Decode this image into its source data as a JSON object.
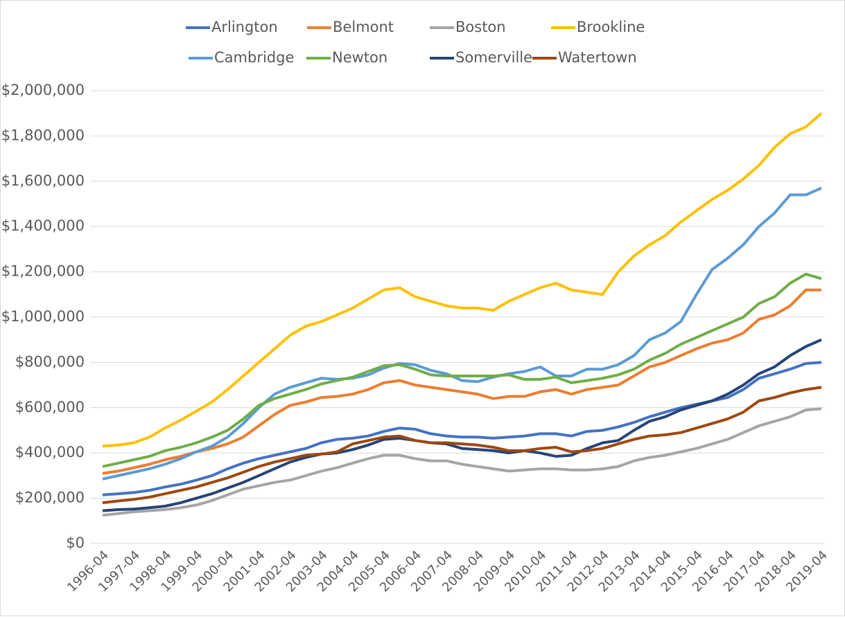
{
  "chart_data": {
    "type": "line",
    "categories": [
      "1996-04",
      null,
      "1997-04",
      null,
      "1998-04",
      null,
      "1999-04",
      null,
      "2000-04",
      null,
      "2001-04",
      null,
      "2002-04",
      null,
      "2003-04",
      null,
      "2004-04",
      null,
      "2005-04",
      null,
      "2006-04",
      null,
      "2007-04",
      null,
      "2008-04",
      null,
      "2009-04",
      null,
      "2010-04",
      null,
      "2011-04",
      null,
      "2012-04",
      null,
      "2013-04",
      null,
      "2014-04",
      null,
      "2015-04",
      null,
      "2016-04",
      null,
      "2017-04",
      null,
      "2018-04",
      null,
      "2019-04"
    ],
    "ylim": [
      0,
      2000000
    ],
    "yticks": [
      {
        "value": 0,
        "label": "$0"
      },
      {
        "value": 200000,
        "label": "$200,000"
      },
      {
        "value": 400000,
        "label": "$400,000"
      },
      {
        "value": 600000,
        "label": "$600,000"
      },
      {
        "value": 800000,
        "label": "$800,000"
      },
      {
        "value": 1000000,
        "label": "$1,000,000"
      },
      {
        "value": 1200000,
        "label": "$1,200,000"
      },
      {
        "value": 1400000,
        "label": "$1,400,000"
      },
      {
        "value": 1600000,
        "label": "$1,600,000"
      },
      {
        "value": 1800000,
        "label": "$1,800,000"
      },
      {
        "value": 2000000,
        "label": "$2,000,000"
      }
    ],
    "grid": true,
    "legend": "top",
    "series": [
      {
        "name": "Arlington",
        "color": "#4472c4",
        "values": [
          215000,
          220000,
          225000,
          235000,
          250000,
          262000,
          280000,
          300000,
          330000,
          355000,
          375000,
          390000,
          405000,
          420000,
          445000,
          460000,
          465000,
          475000,
          495000,
          510000,
          505000,
          485000,
          475000,
          470000,
          470000,
          465000,
          470000,
          475000,
          485000,
          485000,
          475000,
          495000,
          500000,
          515000,
          535000,
          560000,
          580000,
          600000,
          615000,
          630000,
          645000,
          680000,
          730000,
          750000,
          770000,
          795000,
          800000
        ]
      },
      {
        "name": "Belmont",
        "color": "#ed7d31",
        "values": [
          310000,
          320000,
          335000,
          350000,
          370000,
          385000,
          405000,
          420000,
          440000,
          470000,
          520000,
          570000,
          610000,
          625000,
          645000,
          650000,
          660000,
          680000,
          710000,
          720000,
          700000,
          690000,
          680000,
          670000,
          660000,
          640000,
          650000,
          650000,
          670000,
          680000,
          660000,
          680000,
          690000,
          700000,
          740000,
          780000,
          800000,
          830000,
          860000,
          885000,
          900000,
          930000,
          990000,
          1010000,
          1050000,
          1120000,
          1120000
        ]
      },
      {
        "name": "Boston",
        "color": "#a5a5a5",
        "values": [
          125000,
          132000,
          140000,
          145000,
          150000,
          158000,
          170000,
          190000,
          215000,
          240000,
          255000,
          270000,
          280000,
          300000,
          320000,
          335000,
          355000,
          375000,
          390000,
          390000,
          375000,
          365000,
          365000,
          350000,
          340000,
          330000,
          320000,
          325000,
          330000,
          330000,
          325000,
          325000,
          330000,
          340000,
          365000,
          380000,
          390000,
          405000,
          420000,
          440000,
          460000,
          490000,
          520000,
          540000,
          560000,
          590000,
          595000
        ]
      },
      {
        "name": "Brookline",
        "color": "#ffc000",
        "values": [
          430000,
          435000,
          445000,
          470000,
          510000,
          545000,
          585000,
          625000,
          680000,
          740000,
          800000,
          860000,
          920000,
          960000,
          980000,
          1010000,
          1040000,
          1080000,
          1120000,
          1130000,
          1090000,
          1070000,
          1050000,
          1040000,
          1040000,
          1030000,
          1070000,
          1100000,
          1130000,
          1150000,
          1120000,
          1110000,
          1100000,
          1200000,
          1270000,
          1320000,
          1360000,
          1420000,
          1470000,
          1520000,
          1560000,
          1610000,
          1670000,
          1750000,
          1810000,
          1840000,
          1900000
        ]
      },
      {
        "name": "Cambridge",
        "color": "#5b9bd5",
        "values": [
          285000,
          300000,
          315000,
          330000,
          350000,
          375000,
          405000,
          430000,
          470000,
          530000,
          600000,
          660000,
          690000,
          710000,
          730000,
          725000,
          730000,
          745000,
          775000,
          795000,
          790000,
          765000,
          750000,
          720000,
          715000,
          735000,
          750000,
          760000,
          780000,
          740000,
          740000,
          770000,
          770000,
          790000,
          830000,
          900000,
          930000,
          980000,
          1100000,
          1210000,
          1260000,
          1320000,
          1400000,
          1460000,
          1540000,
          1540000,
          1570000
        ]
      },
      {
        "name": "Newton",
        "color": "#70ad47",
        "values": [
          340000,
          355000,
          370000,
          385000,
          410000,
          425000,
          445000,
          470000,
          500000,
          550000,
          610000,
          640000,
          660000,
          680000,
          705000,
          720000,
          735000,
          760000,
          785000,
          790000,
          770000,
          745000,
          740000,
          740000,
          740000,
          740000,
          745000,
          725000,
          725000,
          735000,
          710000,
          720000,
          730000,
          745000,
          770000,
          810000,
          840000,
          880000,
          910000,
          940000,
          970000,
          1000000,
          1060000,
          1090000,
          1150000,
          1190000,
          1170000
        ]
      },
      {
        "name": "Somerville",
        "color": "#264478",
        "values": [
          145000,
          150000,
          152000,
          158000,
          165000,
          180000,
          200000,
          220000,
          245000,
          270000,
          300000,
          330000,
          360000,
          380000,
          395000,
          400000,
          415000,
          435000,
          460000,
          465000,
          455000,
          445000,
          440000,
          420000,
          415000,
          410000,
          400000,
          410000,
          400000,
          385000,
          390000,
          420000,
          445000,
          455000,
          500000,
          540000,
          560000,
          590000,
          610000,
          630000,
          660000,
          700000,
          750000,
          780000,
          830000,
          870000,
          900000
        ]
      },
      {
        "name": "Watertown",
        "color": "#9e480e",
        "values": [
          180000,
          188000,
          195000,
          205000,
          220000,
          235000,
          250000,
          270000,
          290000,
          315000,
          340000,
          360000,
          375000,
          390000,
          395000,
          405000,
          440000,
          455000,
          470000,
          475000,
          455000,
          445000,
          445000,
          440000,
          435000,
          425000,
          410000,
          410000,
          420000,
          425000,
          405000,
          410000,
          420000,
          440000,
          460000,
          475000,
          480000,
          490000,
          510000,
          530000,
          550000,
          580000,
          630000,
          645000,
          665000,
          680000,
          690000
        ]
      }
    ]
  }
}
